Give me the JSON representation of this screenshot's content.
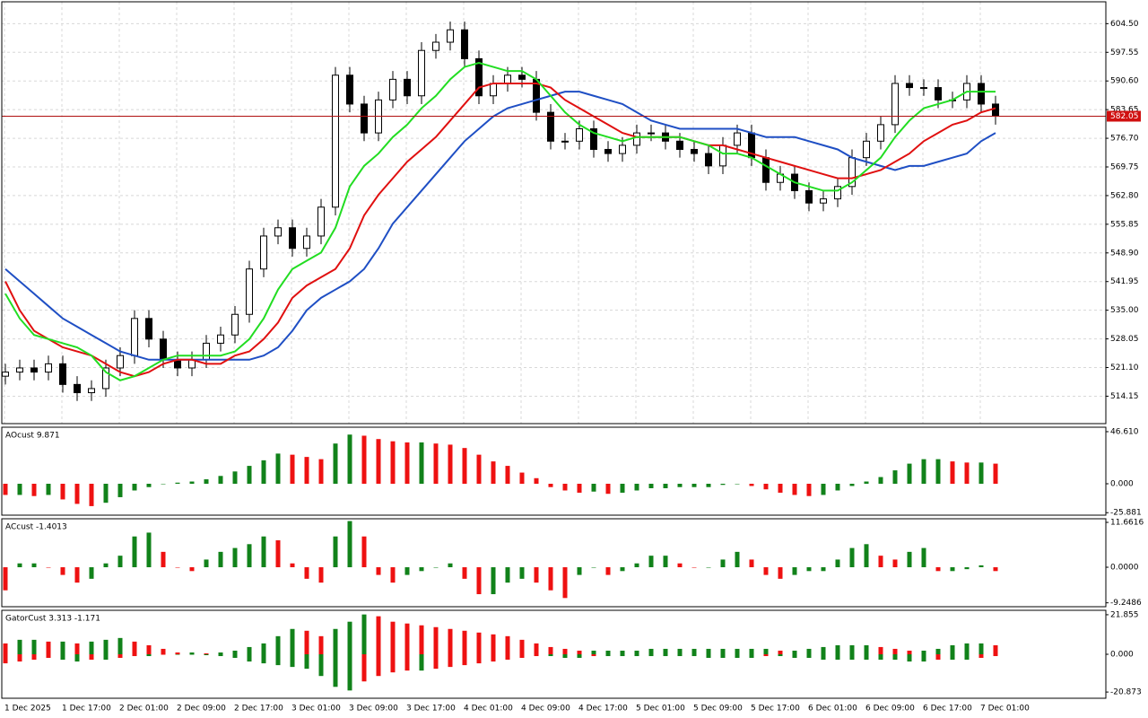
{
  "chart_data": [
    {
      "type": "candlestick",
      "x_labels": [
        "1 Dec 2025",
        "1 Dec 17:00",
        "2 Dec 01:00",
        "2 Dec 09:00",
        "2 Dec 17:00",
        "3 Dec 01:00",
        "3 Dec 09:00",
        "3 Dec 17:00",
        "4 Dec 01:00",
        "4 Dec 09:00",
        "4 Dec 17:00",
        "5 Dec 01:00",
        "5 Dec 09:00",
        "5 Dec 17:00",
        "6 Dec 01:00",
        "6 Dec 09:00",
        "6 Dec 17:00",
        "7 Dec 01:00"
      ],
      "open": [
        519,
        520,
        521,
        520,
        522,
        517,
        515,
        516,
        521,
        524,
        533,
        528,
        523,
        521,
        523,
        527,
        529,
        534,
        545,
        553,
        555,
        550,
        553,
        560,
        592,
        585,
        578,
        586,
        591,
        587,
        598,
        600,
        603,
        596,
        587,
        590,
        592,
        591,
        583,
        576,
        576,
        579,
        574,
        573,
        575,
        578,
        578,
        576,
        574,
        573,
        570,
        575,
        578,
        572,
        566,
        568,
        564,
        561,
        562,
        565,
        572,
        576,
        580,
        590,
        589,
        589,
        586,
        586,
        590,
        585
      ],
      "high": [
        522,
        523,
        523,
        524,
        524,
        519,
        518,
        523,
        526,
        535,
        535,
        530,
        525,
        525,
        529,
        531,
        536,
        547,
        555,
        557,
        557,
        555,
        562,
        594,
        594,
        587,
        588,
        593,
        593,
        600,
        602,
        605,
        605,
        598,
        592,
        594,
        594,
        593,
        585,
        578,
        581,
        581,
        576,
        577,
        580,
        580,
        580,
        578,
        576,
        575,
        577,
        580,
        580,
        574,
        570,
        570,
        566,
        564,
        567,
        574,
        578,
        582,
        592,
        592,
        591,
        591,
        588,
        592,
        592,
        587
      ],
      "low": [
        517,
        518,
        518,
        518,
        515,
        513,
        513,
        514,
        519,
        522,
        526,
        521,
        519,
        519,
        521,
        525,
        527,
        532,
        543,
        551,
        548,
        548,
        551,
        558,
        583,
        576,
        576,
        584,
        585,
        585,
        596,
        598,
        594,
        585,
        585,
        588,
        589,
        581,
        574,
        574,
        574,
        572,
        571,
        571,
        573,
        576,
        574,
        572,
        571,
        568,
        568,
        573,
        570,
        564,
        564,
        562,
        559,
        559,
        560,
        563,
        570,
        574,
        578,
        587,
        587,
        584,
        584,
        584,
        583,
        580
      ],
      "close": [
        520,
        521,
        520,
        522,
        517,
        515,
        516,
        521,
        524,
        533,
        528,
        523,
        521,
        523,
        527,
        529,
        534,
        545,
        553,
        555,
        550,
        553,
        560,
        592,
        585,
        578,
        586,
        591,
        587,
        598,
        600,
        603,
        596,
        587,
        590,
        592,
        591,
        583,
        576,
        576,
        579,
        574,
        573,
        575,
        578,
        578,
        576,
        574,
        573,
        570,
        575,
        578,
        572,
        566,
        568,
        564,
        561,
        562,
        565,
        572,
        576,
        580,
        590,
        589,
        589,
        586,
        586,
        590,
        585,
        582.05
      ],
      "series": [
        {
          "color": "#1f4fc4",
          "values": [
            545,
            542,
            539,
            536,
            533,
            531,
            529,
            527,
            525,
            524,
            523,
            523,
            523,
            523,
            523,
            523,
            523,
            523,
            524,
            526,
            530,
            535,
            538,
            540,
            542,
            545,
            550,
            556,
            560,
            564,
            568,
            572,
            576,
            579,
            582,
            584,
            585,
            586,
            587,
            588,
            588,
            587,
            586,
            585,
            583,
            581,
            580,
            579,
            579,
            579,
            579,
            579,
            578,
            577,
            577,
            577,
            576,
            575,
            574,
            572,
            571,
            570,
            569,
            570,
            570,
            571,
            572,
            573,
            576,
            578
          ]
        },
        {
          "color": "#e01010",
          "values": [
            542,
            535,
            530,
            528,
            526,
            525,
            524,
            522,
            520,
            519,
            520,
            522,
            523,
            523,
            522,
            522,
            524,
            525,
            528,
            532,
            538,
            541,
            543,
            545,
            550,
            558,
            563,
            567,
            571,
            574,
            577,
            581,
            585,
            589,
            590,
            590,
            590,
            590,
            589,
            586,
            584,
            582,
            580,
            578,
            577,
            577,
            577,
            577,
            576,
            575,
            575,
            574,
            573,
            572,
            571,
            570,
            569,
            568,
            567,
            567,
            568,
            569,
            571,
            573,
            576,
            578,
            580,
            581,
            583,
            584
          ]
        },
        {
          "color": "#22dd22",
          "values": [
            539,
            533,
            529,
            528,
            527,
            526,
            524,
            520,
            518,
            519,
            521,
            523,
            524,
            524,
            524,
            524,
            525,
            528,
            533,
            540,
            545,
            547,
            549,
            555,
            565,
            570,
            573,
            577,
            580,
            584,
            587,
            591,
            594,
            595,
            594,
            593,
            593,
            591,
            587,
            583,
            580,
            578,
            577,
            576,
            577,
            577,
            577,
            577,
            576,
            575,
            573,
            573,
            572,
            570,
            568,
            566,
            565,
            564,
            564,
            566,
            569,
            572,
            577,
            581,
            584,
            585,
            586,
            588,
            588,
            588
          ]
        }
      ],
      "current_price": 582.05,
      "ylim": [
        507.5,
        609.8
      ],
      "yticks": [
        {
          "value": 604.5,
          "label": "604.50"
        },
        597.55,
        {
          "value": 590.6,
          "label": "590.60"
        },
        583.65,
        {
          "value": 576.7,
          "label": "576.70"
        },
        569.75,
        {
          "value": 562.8,
          "label": "562.80"
        },
        555.85,
        {
          "value": 548.9,
          "label": "548.90"
        },
        541.95,
        {
          "value": 535,
          "label": "535.00"
        },
        528.05,
        {
          "value": 521.1,
          "label": "521.10"
        },
        514.15
      ],
      "grid": true
    },
    {
      "type": "histogram",
      "title": "AOcust 9.871",
      "up_color": "#11821a",
      "down_color": "#ee1111",
      "values": [
        -10,
        -10,
        -11,
        -10,
        -14,
        -18,
        -20,
        -17,
        -12,
        -6,
        -3,
        0,
        1,
        2,
        4,
        7,
        11,
        16,
        21,
        27,
        26,
        24,
        22,
        36,
        44,
        43,
        40,
        38,
        37,
        37,
        36,
        35,
        32,
        26,
        20,
        16,
        10,
        5,
        -3,
        -6,
        -8,
        -7,
        -9,
        -8,
        -6,
        -4,
        -4,
        -3,
        -3,
        -3,
        -1,
        0,
        -2,
        -5,
        -8,
        -10,
        -11,
        -10,
        -6,
        -2,
        2,
        6,
        12,
        18,
        22,
        22,
        20,
        19,
        19,
        18
      ],
      "ylim": [
        -28.1,
        50.6
      ],
      "yticks": [
        {
          "value": 46.61,
          "label": "46.610"
        },
        {
          "value": 0,
          "label": "0.000"
        },
        -25.881
      ]
    },
    {
      "type": "histogram",
      "title": "ACcust -1.4013",
      "up_color": "#11821a",
      "down_color": "#ee1111",
      "values": [
        -6,
        1,
        1,
        0,
        -2,
        -4,
        -3,
        1,
        3,
        8,
        9,
        4,
        0,
        -1,
        2,
        4,
        5,
        6,
        8,
        7,
        1,
        -3,
        -4,
        8,
        12,
        8,
        -2,
        -4,
        -2,
        -1,
        0,
        1,
        -3,
        -7,
        -7,
        -4,
        -3,
        -4,
        -6,
        -8,
        -2,
        0,
        -2,
        -1,
        1,
        3,
        3,
        1,
        0,
        0,
        2,
        4,
        2,
        -2,
        -3,
        -2,
        -1,
        -1,
        2,
        5,
        6,
        3,
        2,
        4,
        5,
        -1,
        -1,
        -0.5,
        0.5,
        -1
      ],
      "ylim": [
        -10.26,
        12.6
      ],
      "yticks": [
        11.6616,
        {
          "value": 0,
          "label": "0.0000"
        },
        -9.2486
      ]
    },
    {
      "type": "gator",
      "title": "GatorCust 3.313 -1.171",
      "up_color": "#11821a",
      "down_color": "#ee1111",
      "upper": [
        6,
        8,
        8,
        7,
        7,
        6,
        7,
        8,
        9,
        7,
        5,
        3,
        1,
        1,
        0.5,
        1,
        2,
        4,
        6,
        10,
        14,
        13,
        10,
        14,
        18,
        22,
        21,
        18,
        17,
        16,
        15,
        14,
        13,
        12,
        11,
        10,
        8,
        6,
        4,
        3,
        2,
        2,
        2,
        2,
        2,
        3,
        3,
        3,
        3,
        3,
        3,
        3,
        3,
        3,
        2,
        2,
        3,
        4,
        5,
        5,
        5,
        4,
        3,
        2,
        2,
        3,
        5,
        6,
        6,
        5
      ],
      "lower": [
        -5,
        -4,
        -3,
        -2,
        -3,
        -4,
        -3,
        -3,
        -2,
        -1,
        -1,
        0,
        0,
        0,
        -0.5,
        -1,
        -2,
        -4,
        -5,
        -6,
        -7,
        -8,
        -12,
        -18,
        -20,
        -15,
        -12,
        -10,
        -9,
        -9,
        -8,
        -7,
        -6,
        -5,
        -4,
        -3,
        -2,
        -1,
        -1,
        -2,
        -2,
        -1,
        -1,
        -1,
        -1,
        -1,
        -1,
        -1,
        -1,
        -2,
        -2,
        -2,
        -2,
        -1,
        -1,
        -2,
        -2,
        -3,
        -3,
        -3,
        -3,
        -3,
        -3,
        -4,
        -4,
        -3,
        -3,
        -3,
        -2,
        -1
      ],
      "ylim": [
        -24.3,
        24.3
      ],
      "yticks": [
        21.855,
        {
          "value": 0,
          "label": "0.000"
        },
        -20.873
      ]
    }
  ]
}
